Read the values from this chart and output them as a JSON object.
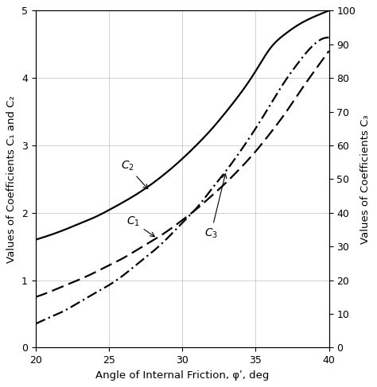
{
  "title": "",
  "xlabel": "Angle of Internal Friction, φʹ, deg",
  "ylabel_left": "Values of Coefficients C₁ and C₂",
  "ylabel_right": "Values of Coefficients C₃",
  "xlim": [
    20,
    40
  ],
  "ylim_left": [
    0,
    5
  ],
  "ylim_right": [
    0,
    100
  ],
  "xticks": [
    20,
    25,
    30,
    35,
    40
  ],
  "yticks_left": [
    0,
    1,
    2,
    3,
    4,
    5
  ],
  "yticks_right": [
    0,
    10,
    20,
    30,
    40,
    50,
    60,
    70,
    80,
    90,
    100
  ],
  "phi_values": [
    20,
    21,
    22,
    23,
    24,
    25,
    26,
    27,
    28,
    29,
    30,
    31,
    32,
    33,
    34,
    35,
    36,
    37,
    38,
    39,
    40
  ],
  "C2_values": [
    1.6,
    1.67,
    1.75,
    1.84,
    1.93,
    2.04,
    2.16,
    2.29,
    2.44,
    2.61,
    2.8,
    3.01,
    3.24,
    3.5,
    3.78,
    4.1,
    4.44,
    4.65,
    4.8,
    4.91,
    5.0
  ],
  "C1_values": [
    0.75,
    0.83,
    0.92,
    1.01,
    1.11,
    1.22,
    1.33,
    1.46,
    1.59,
    1.73,
    1.89,
    2.06,
    2.25,
    2.45,
    2.67,
    2.91,
    3.18,
    3.47,
    3.79,
    4.1,
    4.4
  ],
  "C3_values": [
    7,
    9,
    11,
    13.5,
    16,
    18.5,
    21.5,
    25,
    28.5,
    32.5,
    37,
    41.5,
    47,
    52.5,
    58.5,
    65,
    72,
    79,
    85,
    90,
    92
  ],
  "line_color": "#000000",
  "bg_color": "#ffffff"
}
